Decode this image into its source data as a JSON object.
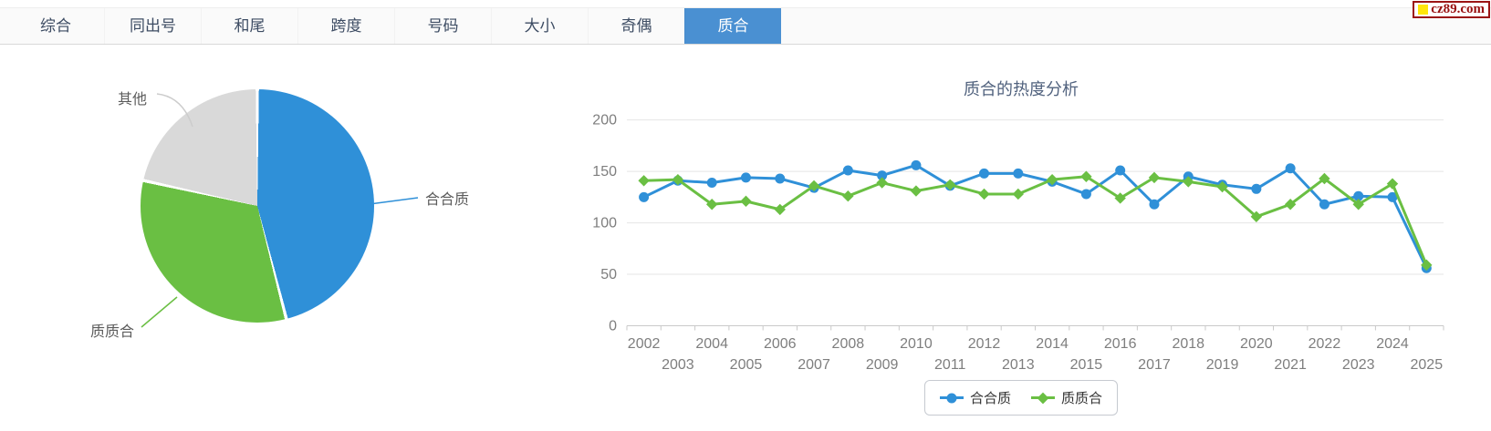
{
  "tabs": {
    "items": [
      {
        "label": "综合",
        "active": false
      },
      {
        "label": "同出号",
        "active": false
      },
      {
        "label": "和尾",
        "active": false
      },
      {
        "label": "跨度",
        "active": false
      },
      {
        "label": "号码",
        "active": false
      },
      {
        "label": "大小",
        "active": false
      },
      {
        "label": "奇偶",
        "active": false
      },
      {
        "label": "质合",
        "active": true
      }
    ]
  },
  "logo": {
    "text": "cz89.com"
  },
  "colors": {
    "series_blue": "#2f90d8",
    "series_green": "#6abf43",
    "pie_gray": "#d9d9d9",
    "active_tab_bg": "#4a90d2",
    "grid_line": "#e4e4e4",
    "axis_line": "#c9c9c9",
    "axis_label": "#7e7e7e"
  },
  "chart_data": [
    {
      "type": "pie",
      "slices": [
        {
          "label": "合合质",
          "percent": 46,
          "color": "#2f90d8"
        },
        {
          "label": "质质合",
          "percent": 32.5,
          "color": "#6abf43"
        },
        {
          "label": "其他",
          "percent": 21.5,
          "color": "#d9d9d9"
        }
      ],
      "start_angle": "12-oclock",
      "direction": "clockwise"
    },
    {
      "type": "line",
      "title": "质合的热度分析",
      "x": [
        "2002",
        "2003",
        "2004",
        "2005",
        "2006",
        "2007",
        "2008",
        "2009",
        "2010",
        "2011",
        "2012",
        "2013",
        "2014",
        "2015",
        "2016",
        "2017",
        "2018",
        "2019",
        "2020",
        "2021",
        "2022",
        "2023",
        "2024",
        "2025"
      ],
      "series": [
        {
          "name": "合合质",
          "color": "#2f90d8",
          "marker": "circle",
          "values": [
            125,
            141,
            139,
            144,
            143,
            134,
            151,
            146,
            156,
            136,
            148,
            148,
            140,
            128,
            151,
            118,
            145,
            137,
            133,
            153,
            118,
            126,
            125,
            56
          ]
        },
        {
          "name": "质质合",
          "color": "#6abf43",
          "marker": "diamond",
          "values": [
            141,
            142,
            118,
            121,
            113,
            136,
            126,
            139,
            131,
            137,
            128,
            128,
            142,
            145,
            124,
            144,
            140,
            135,
            106,
            118,
            143,
            118,
            138,
            59
          ]
        }
      ],
      "ylim": [
        0,
        200
      ],
      "yticks": [
        0,
        50,
        100,
        150,
        200
      ],
      "grid": true,
      "legend_position": "bottom"
    }
  ]
}
